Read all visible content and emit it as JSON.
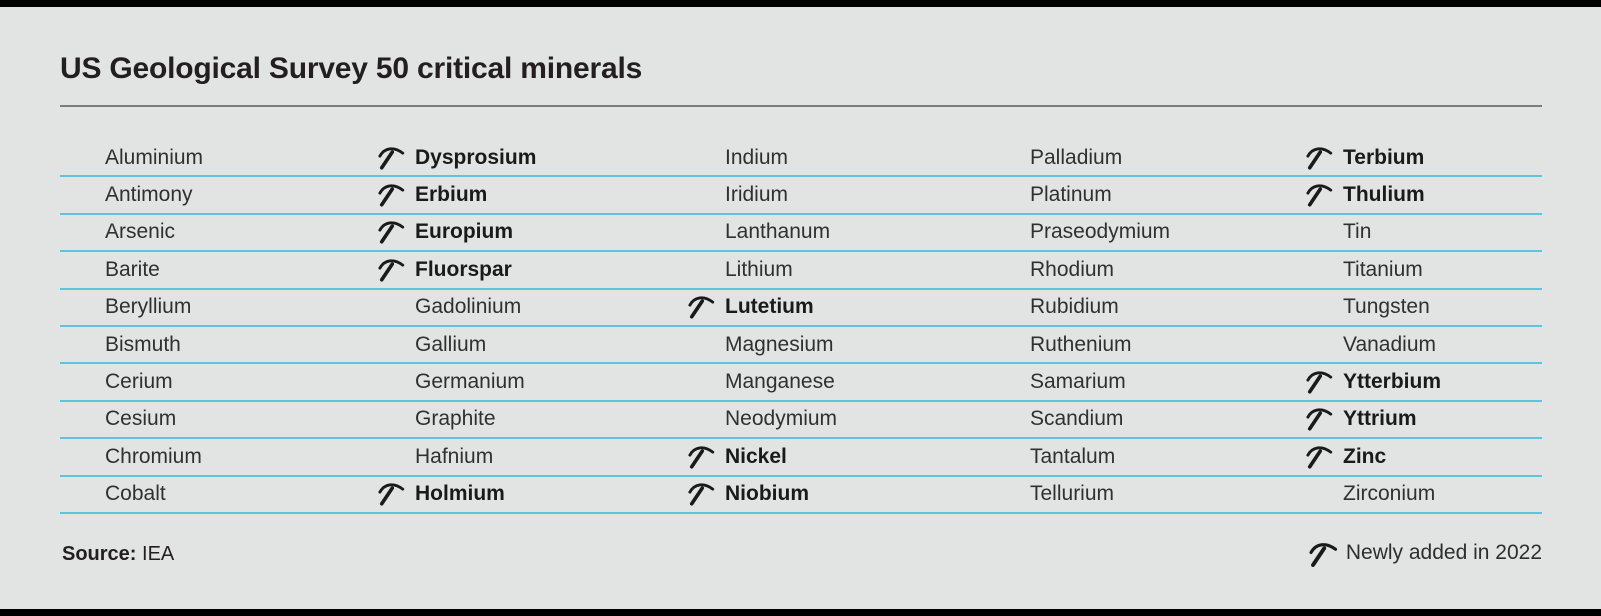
{
  "title": "US Geological Survey 50 critical minerals",
  "source": {
    "label": "Source:",
    "value": " IEA"
  },
  "legend": {
    "icon": "pickaxe-icon",
    "label": "Newly added in 2022"
  },
  "icons": {
    "new_marker": "pickaxe-icon"
  },
  "colors": {
    "background": "#e2e3e3",
    "edge_bars": "#000000",
    "row_separator": "#5ec4de",
    "title_rule": "#7c7c7c",
    "text": "#303030",
    "text_bold": "#1a1a1a"
  },
  "chart_data": {
    "type": "table",
    "title": "US Geological Survey 50 critical minerals",
    "legend_note": "Newly added in 2022",
    "source": "IEA",
    "columns": [
      [
        {
          "name": "Aluminium",
          "new": false
        },
        {
          "name": "Antimony",
          "new": false
        },
        {
          "name": "Arsenic",
          "new": false
        },
        {
          "name": "Barite",
          "new": false
        },
        {
          "name": "Beryllium",
          "new": false
        },
        {
          "name": "Bismuth",
          "new": false
        },
        {
          "name": "Cerium",
          "new": false
        },
        {
          "name": "Cesium",
          "new": false
        },
        {
          "name": "Chromium",
          "new": false
        },
        {
          "name": "Cobalt",
          "new": false
        }
      ],
      [
        {
          "name": "Dysprosium",
          "new": true
        },
        {
          "name": "Erbium",
          "new": true
        },
        {
          "name": "Europium",
          "new": true
        },
        {
          "name": "Fluorspar",
          "new": true
        },
        {
          "name": "Gadolinium",
          "new": false
        },
        {
          "name": "Gallium",
          "new": false
        },
        {
          "name": "Germanium",
          "new": false
        },
        {
          "name": "Graphite",
          "new": false
        },
        {
          "name": "Hafnium",
          "new": false
        },
        {
          "name": "Holmium",
          "new": true
        }
      ],
      [
        {
          "name": "Indium",
          "new": false
        },
        {
          "name": "Iridium",
          "new": false
        },
        {
          "name": "Lanthanum",
          "new": false
        },
        {
          "name": "Lithium",
          "new": false
        },
        {
          "name": "Lutetium",
          "new": true
        },
        {
          "name": "Magnesium",
          "new": false
        },
        {
          "name": "Manganese",
          "new": false
        },
        {
          "name": "Neodymium",
          "new": false
        },
        {
          "name": "Nickel",
          "new": true
        },
        {
          "name": "Niobium",
          "new": true
        }
      ],
      [
        {
          "name": "Palladium",
          "new": false
        },
        {
          "name": "Platinum",
          "new": false
        },
        {
          "name": "Praseodymium",
          "new": false
        },
        {
          "name": "Rhodium",
          "new": false
        },
        {
          "name": "Rubidium",
          "new": false
        },
        {
          "name": "Ruthenium",
          "new": false
        },
        {
          "name": "Samarium",
          "new": false
        },
        {
          "name": "Scandium",
          "new": false
        },
        {
          "name": "Tantalum",
          "new": false
        },
        {
          "name": "Tellurium",
          "new": false
        }
      ],
      [
        {
          "name": "Terbium",
          "new": true
        },
        {
          "name": "Thulium",
          "new": true
        },
        {
          "name": "Tin",
          "new": false
        },
        {
          "name": "Titanium",
          "new": false
        },
        {
          "name": "Tungsten",
          "new": false
        },
        {
          "name": "Vanadium",
          "new": false
        },
        {
          "name": "Ytterbium",
          "new": true
        },
        {
          "name": "Yttrium",
          "new": true
        },
        {
          "name": "Zinc",
          "new": true
        },
        {
          "name": "Zirconium",
          "new": false
        }
      ]
    ]
  }
}
